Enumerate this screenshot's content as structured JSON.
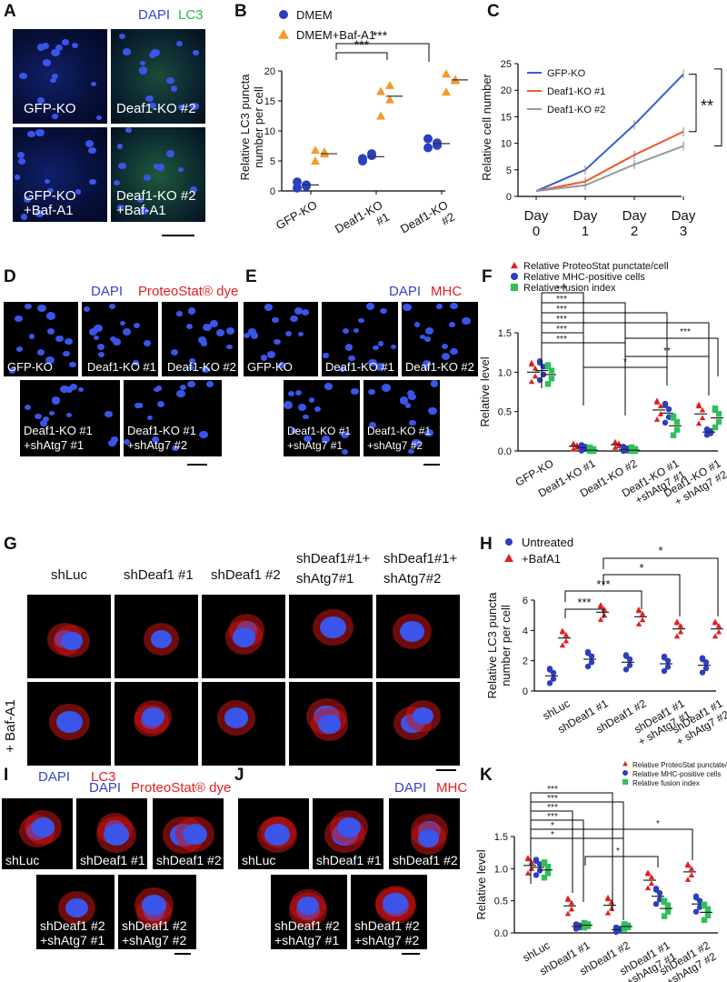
{
  "panels": {
    "A": {
      "label": "A",
      "dapi": "DAPI",
      "lc3": "LC3",
      "cells": [
        "GFP-KO",
        "Deaf1-KO #2",
        "GFP-KO\n+Baf-A1",
        "Deaf1-KO #2\n+Baf-A1"
      ]
    },
    "B": {
      "label": "B"
    },
    "C": {
      "label": "C"
    },
    "D": {
      "label": "D",
      "dapi": "DAPI",
      "dye": "ProteoStat® dye",
      "cells": [
        "GFP-KO",
        "Deaf1-KO #1",
        "Deaf1-KO #2",
        "Deaf1-KO #1\n+shAtg7 #1",
        "Deaf1-KO #1\n+shAtg7 #2"
      ]
    },
    "E": {
      "label": "E",
      "dapi": "DAPI",
      "mhc": "MHC",
      "cells": [
        "GFP-KO",
        "Deaf1-KO #1",
        "Deaf1-KO #2",
        "Deaf1-KO #1\n+shAtg7 #1",
        "Deaf1-KO #1\n+shAtg7 #2"
      ]
    },
    "F": {
      "label": "F"
    },
    "G": {
      "label": "G",
      "cols": [
        "shLuc",
        "shDeaf1 #1",
        "shDeaf1 #2",
        "shDeaf1#1+\nshAtg7#1",
        "shDeaf1#1+\nshAtg7#2"
      ],
      "row_label": "+ Baf-A1",
      "dapi": "DAPI",
      "lc3": "LC3"
    },
    "H": {
      "label": "H"
    },
    "I": {
      "label": "I",
      "dapi": "DAPI",
      "dye": "ProteoStat® dye",
      "cells": [
        "shLuc",
        "shDeaf1 #1",
        "shDeaf1 #2",
        "shDeaf1 #2\n+shAtg7 #1",
        "shDeaf1 #2\n+shAtg7 #2"
      ]
    },
    "J": {
      "label": "J",
      "dapi": "DAPI",
      "mhc": "MHC",
      "cells": [
        "shLuc",
        "shDeaf1 #1",
        "shDeaf1 #2",
        "shDeaf1 #2\n+shAtg7 #1",
        "shDeaf1 #2\n+shAtg7 #2"
      ]
    },
    "K": {
      "label": "K"
    }
  },
  "colors": {
    "dapi": "#3344cc",
    "lc3": "#22bb44",
    "red": "#e02020",
    "blue_dot": "#2b3fbf",
    "orange": "#f39a2a",
    "green": "#2ec05a",
    "gray": "#999999"
  },
  "chart_data": [
    {
      "id": "B",
      "type": "scatter",
      "ylabel": "Relative LC3 puncta\nnumber per cell",
      "ylim": [
        0,
        20
      ],
      "yticks": [
        0,
        5,
        10,
        15,
        20
      ],
      "categories": [
        "GFP-KO",
        "Deaf1-KO\n#1",
        "Deaf1-KO\n#2"
      ],
      "series": [
        {
          "name": "DMEM",
          "marker": "circle",
          "color": "#2b3fbf",
          "values": [
            [
              0.5,
              1.0,
              1.5,
              0.8
            ],
            [
              5.0,
              6.2,
              5.4,
              5.9
            ],
            [
              7.2,
              8.0,
              8.7,
              7.6
            ]
          ],
          "means": [
            1.0,
            5.7,
            7.9
          ]
        },
        {
          "name": "DMEM+Baf-A1",
          "marker": "triangle",
          "color": "#f39a2a",
          "values": [
            [
              5.0,
              6.2,
              6.8,
              6.5
            ],
            [
              12.5,
              15.2,
              16.6,
              17.6
            ],
            [
              16.5,
              18.6,
              19.5,
              18.4
            ]
          ],
          "means": [
            6.2,
            15.8,
            18.5
          ]
        }
      ],
      "sig": [
        {
          "from": 1,
          "to": 2,
          "text": "***"
        },
        {
          "from": 1,
          "to": 3,
          "text": "***"
        }
      ]
    },
    {
      "id": "C",
      "type": "line",
      "ylabel": "Relative cell number",
      "ylim": [
        0,
        25
      ],
      "yticks": [
        0,
        5,
        10,
        15,
        20,
        25
      ],
      "x": [
        "Day\n0",
        "Day\n1",
        "Day\n2",
        "Day\n3"
      ],
      "series": [
        {
          "name": "GFP-KO",
          "color": "#3a5bd0",
          "values": [
            1,
            5,
            13.5,
            23
          ]
        },
        {
          "name": "Deaf1-KO #1",
          "color": "#f05a28",
          "values": [
            1,
            2.8,
            7.8,
            12.2
          ]
        },
        {
          "name": "Deaf1-KO #2",
          "color": "#999999",
          "values": [
            1,
            2.1,
            6.0,
            9.5
          ]
        }
      ],
      "sig": [
        "**",
        "**"
      ]
    },
    {
      "id": "F",
      "type": "scatter",
      "ylabel": "Relative level",
      "ylim": [
        0,
        1.5
      ],
      "yticks": [
        0.0,
        0.5,
        1.0,
        1.5
      ],
      "categories": [
        "GFP-KO",
        "Deaf1-KO #1",
        "Deaf1-KO #2",
        "Deaf1-KO #1\n+shAtg7 #1",
        "Deaf1-KO #1\n+ shAtg7 #2"
      ],
      "series": [
        {
          "name": "Relative ProteoStat punctate/cell",
          "color": "#e02020",
          "means": [
            1.0,
            0.06,
            0.08,
            0.52,
            0.47
          ]
        },
        {
          "name": "Relative MHC-positive cells",
          "color": "#2b3fbf",
          "means": [
            1.02,
            0.04,
            0.02,
            0.48,
            0.24
          ]
        },
        {
          "name": "Relative fusion index",
          "color": "#2ec05a",
          "means": [
            0.97,
            0.01,
            0.01,
            0.32,
            0.42
          ]
        }
      ],
      "sig": [
        "***",
        "***",
        "***",
        "***",
        "***",
        "***",
        "*",
        "**",
        "***"
      ]
    },
    {
      "id": "H",
      "type": "scatter",
      "ylabel": "Relative LC3 puncta\nnumber per cell",
      "ylim": [
        0,
        6
      ],
      "yticks": [
        0,
        2,
        4,
        6
      ],
      "categories": [
        "shLuc",
        "shDeaf1 #1",
        "shDeaf1 #2",
        "shDeaf1 #1\n+ shAtg7 #1",
        "shDeaf1 #1\n+ shAtg7 #2"
      ],
      "series": [
        {
          "name": "Untreated",
          "color": "#2b3fbf",
          "means": [
            1.0,
            2.1,
            1.9,
            1.8,
            1.7
          ]
        },
        {
          "name": "+BafA1",
          "color": "#e02020",
          "means": [
            3.5,
            5.2,
            4.9,
            4.1,
            4.1
          ]
        }
      ],
      "sig": [
        "***",
        "***",
        "*",
        "*"
      ]
    },
    {
      "id": "K",
      "type": "scatter",
      "ylabel": "Relative level",
      "ylim": [
        0,
        1.5
      ],
      "yticks": [
        0.0,
        0.5,
        1.0,
        1.5
      ],
      "categories": [
        "shLuc",
        "shDeaf1 #1",
        "shDeaf1 #2",
        "shDeaf1 #1\n+shAtg7 #1",
        "shDeaf1 #2\n+shAtg7 #2"
      ],
      "series": [
        {
          "name": "Relative ProteoStat punctate/cell",
          "color": "#e02020",
          "means": [
            1.05,
            0.42,
            0.43,
            0.82,
            0.95
          ]
        },
        {
          "name": "Relative MHC-positive cells",
          "color": "#2b3fbf",
          "means": [
            1.02,
            0.1,
            0.05,
            0.57,
            0.45
          ]
        },
        {
          "name": "Relative fusion index",
          "color": "#2ec05a",
          "means": [
            0.98,
            0.12,
            0.1,
            0.38,
            0.32
          ]
        }
      ],
      "sig": [
        "***",
        "***",
        "***",
        "***",
        "*",
        "*",
        "*",
        "*"
      ]
    }
  ]
}
